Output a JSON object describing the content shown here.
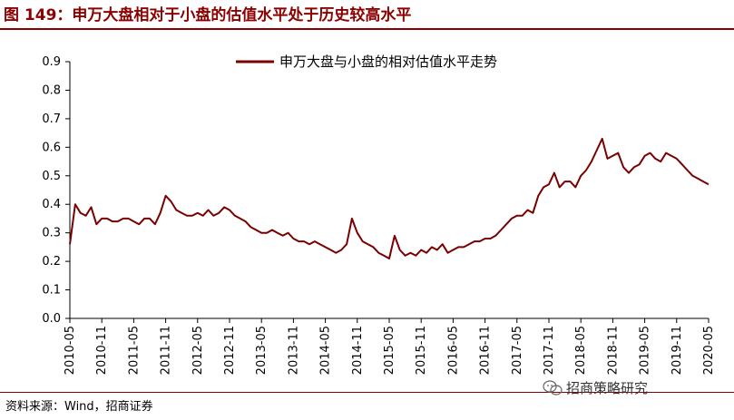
{
  "header": {
    "title": "图 149：申万大盘相对于小盘的估值水平处于历史较高水平"
  },
  "footer": {
    "source": "资料来源：Wind，招商证券",
    "watermark": "招商策略研究"
  },
  "colors": {
    "accent": "#8b0000",
    "series": "#7a0000"
  },
  "chart_data": {
    "type": "line",
    "title": "",
    "xlabel": "",
    "ylabel": "",
    "ylim": [
      0,
      0.9
    ],
    "yticks": [
      "0.0",
      "0.1",
      "0.2",
      "0.3",
      "0.4",
      "0.5",
      "0.6",
      "0.7",
      "0.8",
      "0.9"
    ],
    "xticks": [
      "2010-05",
      "2010-11",
      "2011-05",
      "2011-11",
      "2012-05",
      "2012-11",
      "2013-05",
      "2013-11",
      "2014-05",
      "2014-11",
      "2015-05",
      "2015-11",
      "2016-05",
      "2016-11",
      "2017-05",
      "2017-11",
      "2018-05",
      "2018-11",
      "2019-05",
      "2019-11",
      "2020-05"
    ],
    "legend": "top-right",
    "grid": false,
    "series": [
      {
        "name": "申万大盘与小盘的相对估值水平走势",
        "x": [
          "2010-05",
          "2010-06",
          "2010-07",
          "2010-08",
          "2010-09",
          "2010-10",
          "2010-11",
          "2010-12",
          "2011-01",
          "2011-02",
          "2011-03",
          "2011-04",
          "2011-05",
          "2011-06",
          "2011-07",
          "2011-08",
          "2011-09",
          "2011-10",
          "2011-11",
          "2011-12",
          "2012-01",
          "2012-02",
          "2012-03",
          "2012-04",
          "2012-05",
          "2012-06",
          "2012-07",
          "2012-08",
          "2012-09",
          "2012-10",
          "2012-11",
          "2012-12",
          "2013-01",
          "2013-02",
          "2013-03",
          "2013-04",
          "2013-05",
          "2013-06",
          "2013-07",
          "2013-08",
          "2013-09",
          "2013-10",
          "2013-11",
          "2013-12",
          "2014-01",
          "2014-02",
          "2014-03",
          "2014-04",
          "2014-05",
          "2014-06",
          "2014-07",
          "2014-08",
          "2014-09",
          "2014-10",
          "2014-11",
          "2014-12",
          "2015-01",
          "2015-02",
          "2015-03",
          "2015-04",
          "2015-05",
          "2015-06",
          "2015-07",
          "2015-08",
          "2015-09",
          "2015-10",
          "2015-11",
          "2015-12",
          "2016-01",
          "2016-02",
          "2016-03",
          "2016-04",
          "2016-05",
          "2016-06",
          "2016-07",
          "2016-08",
          "2016-09",
          "2016-10",
          "2016-11",
          "2016-12",
          "2017-01",
          "2017-02",
          "2017-03",
          "2017-04",
          "2017-05",
          "2017-06",
          "2017-07",
          "2017-08",
          "2017-09",
          "2017-10",
          "2017-11",
          "2017-12",
          "2018-01",
          "2018-02",
          "2018-03",
          "2018-04",
          "2018-05",
          "2018-06",
          "2018-07",
          "2018-08",
          "2018-09",
          "2018-10",
          "2018-11",
          "2018-12",
          "2019-01",
          "2019-02",
          "2019-03",
          "2019-04",
          "2019-05",
          "2019-06",
          "2019-07",
          "2019-08",
          "2019-09",
          "2019-10",
          "2019-11",
          "2019-12",
          "2020-01",
          "2020-02",
          "2020-03",
          "2020-04",
          "2020-05"
        ],
        "values": [
          0.26,
          0.4,
          0.37,
          0.36,
          0.39,
          0.33,
          0.35,
          0.35,
          0.34,
          0.34,
          0.35,
          0.35,
          0.34,
          0.33,
          0.35,
          0.35,
          0.33,
          0.37,
          0.43,
          0.41,
          0.38,
          0.37,
          0.36,
          0.36,
          0.37,
          0.36,
          0.38,
          0.36,
          0.37,
          0.39,
          0.38,
          0.36,
          0.35,
          0.34,
          0.32,
          0.31,
          0.3,
          0.3,
          0.31,
          0.3,
          0.29,
          0.3,
          0.28,
          0.27,
          0.27,
          0.26,
          0.27,
          0.26,
          0.25,
          0.24,
          0.23,
          0.24,
          0.26,
          0.35,
          0.3,
          0.27,
          0.26,
          0.25,
          0.23,
          0.22,
          0.21,
          0.29,
          0.24,
          0.22,
          0.23,
          0.22,
          0.24,
          0.23,
          0.25,
          0.24,
          0.26,
          0.23,
          0.24,
          0.25,
          0.25,
          0.26,
          0.27,
          0.27,
          0.28,
          0.28,
          0.29,
          0.31,
          0.33,
          0.35,
          0.36,
          0.36,
          0.38,
          0.37,
          0.43,
          0.46,
          0.47,
          0.51,
          0.46,
          0.48,
          0.48,
          0.46,
          0.5,
          0.52,
          0.55,
          0.59,
          0.63,
          0.56,
          0.57,
          0.58,
          0.53,
          0.51,
          0.53,
          0.54,
          0.57,
          0.58,
          0.56,
          0.55,
          0.58,
          0.57,
          0.56,
          0.54,
          0.52,
          0.5,
          0.49,
          0.48,
          0.47
        ]
      }
    ]
  }
}
